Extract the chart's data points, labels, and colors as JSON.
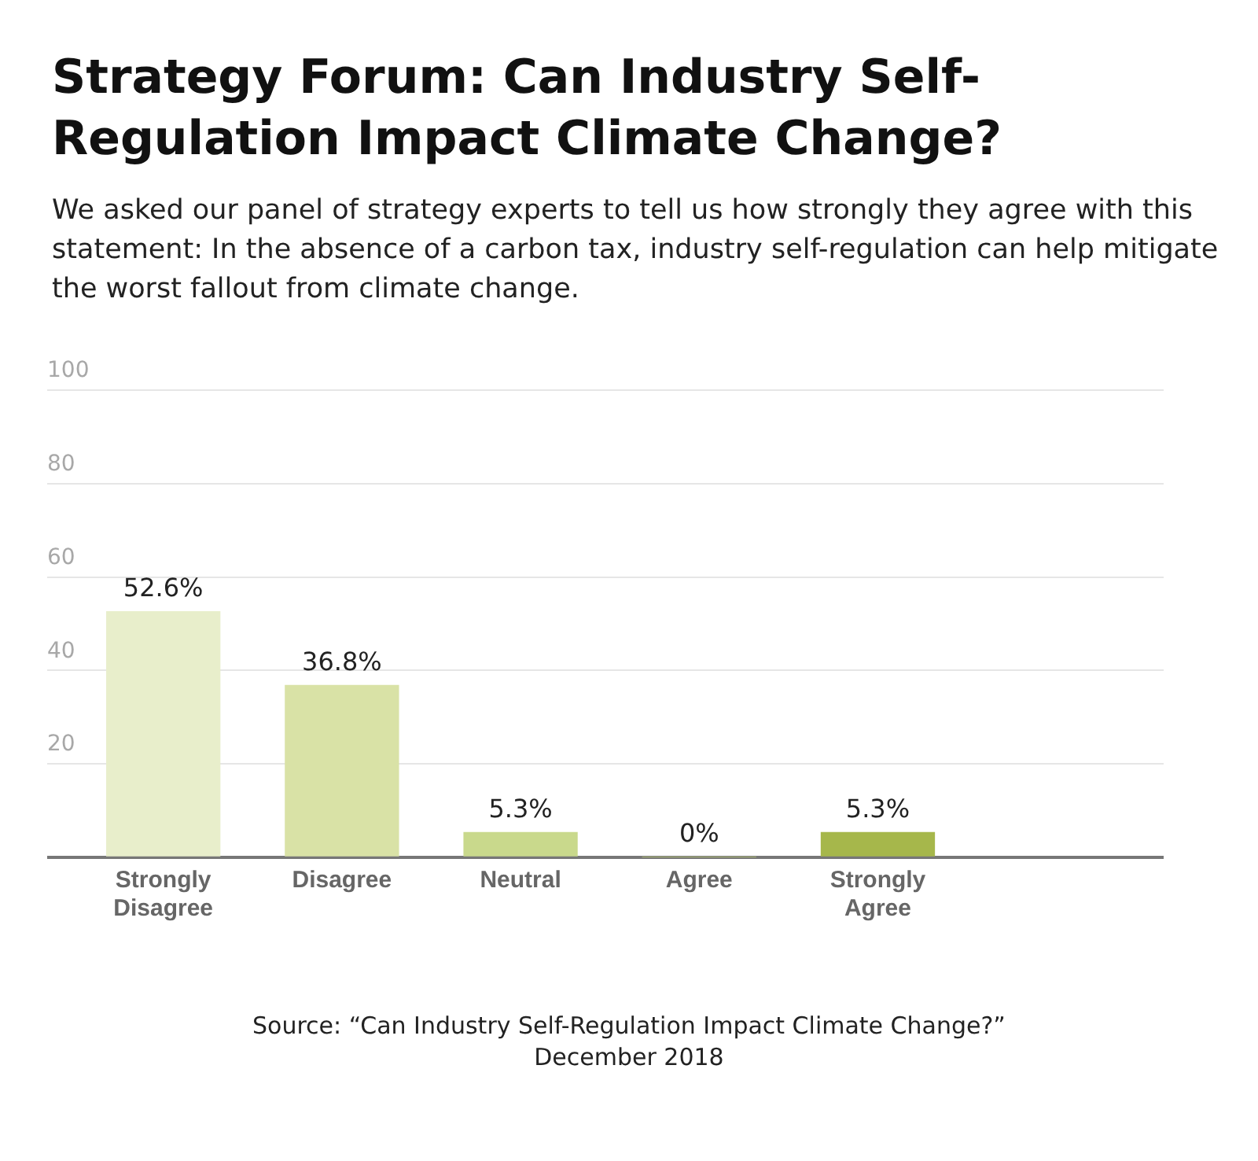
{
  "chart_data": {
    "type": "bar",
    "title": "Strategy Forum: Can Industry Self-Regulation Impact Climate Change?",
    "subtitle": "We asked our panel of strategy experts to tell us how strongly they agree with this statement: In the absence of a carbon tax, industry self-regulation can help mitigate the worst fallout from climate change.",
    "categories": [
      "Strongly Disagree",
      "Disagree",
      "Neutral",
      "Agree",
      "Strongly Agree"
    ],
    "values": [
      52.6,
      36.8,
      5.3,
      0,
      5.3
    ],
    "colors": [
      "#e8eecb",
      "#d9e2a6",
      "#c9d98c",
      "#bccf75",
      "#a6b74b"
    ],
    "value_labels": [
      "52.6%",
      "36.8%",
      "5.3%",
      "0%",
      "5.3%"
    ],
    "ylim": [
      0,
      100
    ],
    "yticks": [
      {
        "value": 0,
        "label": null
      },
      20,
      40,
      60,
      80,
      100
    ],
    "grid": "y",
    "annotations": [
      "Source: “Can Industry Self-Regulation Impact Climate Change?”",
      "December 2018"
    ]
  }
}
